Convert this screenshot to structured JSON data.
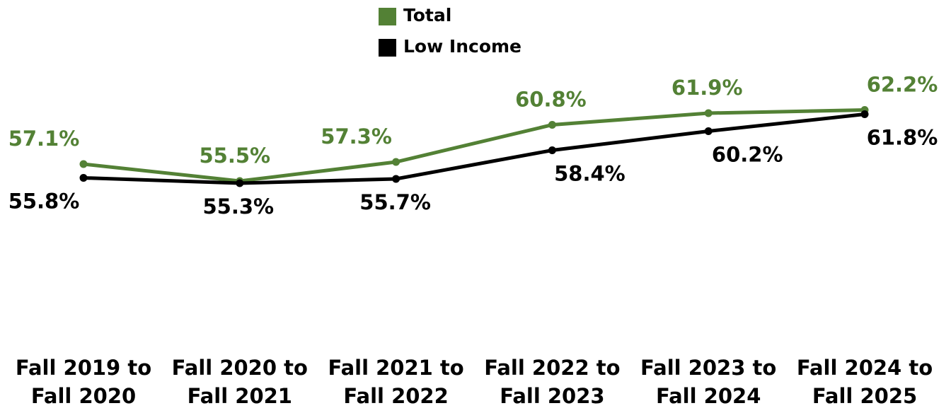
{
  "chart_data": {
    "type": "line",
    "categories": [
      "Fall 2019 to Fall 2020",
      "Fall 2020 to Fall 2021",
      "Fall 2021 to Fall 2022",
      "Fall 2022 to Fall 2023",
      "Fall 2023 to Fall 2024",
      "Fall 2024 to Fall 2025"
    ],
    "series": [
      {
        "name": "Total",
        "color": "#538135",
        "values": [
          57.1,
          55.5,
          57.3,
          60.8,
          61.9,
          62.2
        ],
        "value_labels": [
          "57.1%",
          "55.5%",
          "57.3%",
          "60.8%",
          "61.9%",
          "62.2%"
        ]
      },
      {
        "name": "Low Income",
        "color": "#000000",
        "values": [
          55.8,
          55.3,
          55.7,
          58.4,
          60.2,
          61.8
        ],
        "value_labels": [
          "55.8%",
          "55.3%",
          "55.7%",
          "58.4%",
          "60.2%",
          "61.8%"
        ]
      }
    ],
    "ylim": [
      50,
      66
    ],
    "legend": "top"
  }
}
